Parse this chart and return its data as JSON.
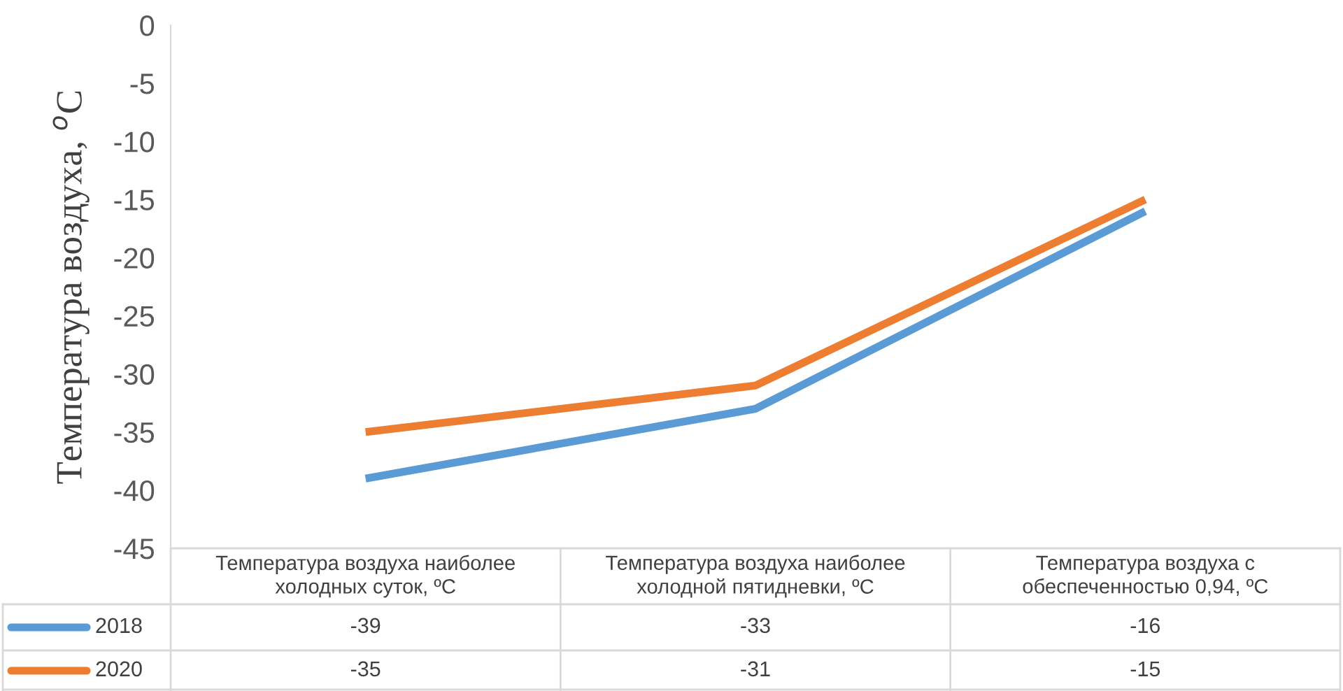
{
  "chart_data": {
    "type": "line",
    "ylabel": "Температура воздуха, $^{o}$C",
    "categories": [
      "Температура воздуха наиболее холодных суток, ºC",
      "Температура воздуха наиболее холодной пятидневки, ºC",
      "Температура воздуха с обеспеченностью 0,94, ºC"
    ],
    "series": [
      {
        "name": "2018",
        "color": "#5b9bd5",
        "values": [
          -39,
          -33,
          -16
        ]
      },
      {
        "name": "2020",
        "color": "#ed7d31",
        "values": [
          -35,
          -31,
          -15
        ]
      }
    ],
    "ylim": [
      -45,
      0
    ],
    "yticks": [
      -45,
      -40,
      -35,
      -30,
      -25,
      -20,
      -15,
      -10,
      -5,
      0
    ],
    "data_labels": true,
    "legend": "bottom",
    "grid": false,
    "marker": "none",
    "line_style": "solid"
  }
}
